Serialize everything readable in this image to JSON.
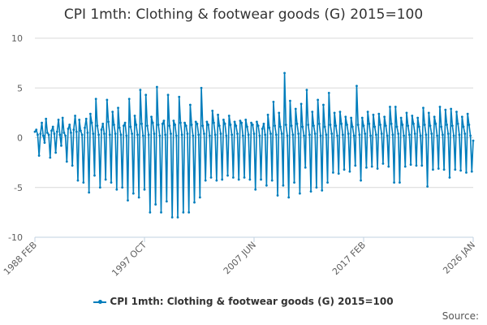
{
  "chart_data": {
    "type": "line",
    "title": "CPI 1mth: Clothing & footwear goods (G) 2015=100",
    "xlabel": "",
    "ylabel": "",
    "x_start": "1988 FEB",
    "x_end": "2026 JAN",
    "x_tick_labels": [
      "1988 FEB",
      "1997 OCT",
      "2007 JUN",
      "2017 FEB",
      "2026 JAN"
    ],
    "ylim": [
      -10,
      10
    ],
    "y_ticks": [
      10,
      5,
      0,
      -5,
      -10
    ],
    "grid": "horizontal",
    "legend_position": "bottom",
    "series": [
      {
        "name": "CPI 1mth: Clothing & footwear goods (G) 2015=100",
        "color": "#007dbc",
        "values": [
          0.6,
          0.8,
          0.3,
          -1.8,
          0.4,
          1.5,
          0.2,
          -0.5,
          1.9,
          0.5,
          0.3,
          -2.0,
          0.7,
          1.1,
          0.4,
          -1.5,
          0.6,
          1.8,
          0.3,
          -0.8,
          2.0,
          0.5,
          0.2,
          -2.4,
          0.9,
          1.3,
          0.5,
          -2.8,
          0.8,
          2.2,
          0.6,
          -4.3,
          1.8,
          0.7,
          0.3,
          -4.5,
          1.0,
          1.9,
          0.5,
          -5.5,
          2.4,
          1.5,
          0.4,
          -3.8,
          3.9,
          1.2,
          0.3,
          -5.0,
          0.8,
          1.4,
          0.4,
          -4.2,
          3.8,
          1.6,
          0.3,
          -4.5,
          2.6,
          1.3,
          0.4,
          -5.2,
          3.0,
          1.0,
          0.3,
          -5.0,
          1.2,
          1.5,
          0.2,
          -6.3,
          3.9,
          1.1,
          0.4,
          -5.6,
          2.2,
          1.3,
          0.3,
          -6.0,
          4.8,
          1.4,
          0.2,
          -5.2,
          4.3,
          1.2,
          0.3,
          -7.5,
          2.1,
          1.5,
          0.4,
          -6.7,
          5.1,
          1.3,
          0.2,
          -7.5,
          1.4,
          1.7,
          0.3,
          -6.4,
          4.3,
          1.2,
          0.4,
          -8.0,
          1.7,
          1.3,
          0.2,
          -8.0,
          4.1,
          1.5,
          0.3,
          -7.5,
          1.5,
          1.2,
          0.4,
          -7.5,
          3.3,
          1.3,
          0.2,
          -6.5,
          1.6,
          1.4,
          0.3,
          -6.0,
          5.0,
          1.2,
          0.4,
          -4.3,
          1.6,
          1.3,
          0.2,
          -4.0,
          2.7,
          1.5,
          0.3,
          -4.3,
          2.3,
          1.2,
          0.4,
          -4.2,
          1.8,
          1.4,
          0.2,
          -3.8,
          2.2,
          1.3,
          0.3,
          -4.0,
          1.6,
          1.2,
          0.4,
          -4.2,
          1.7,
          1.5,
          0.2,
          -4.0,
          1.8,
          1.1,
          0.3,
          -4.2,
          1.5,
          1.3,
          0.4,
          -5.2,
          1.6,
          1.2,
          0.2,
          -4.2,
          0.9,
          1.4,
          0.3,
          -4.8,
          2.3,
          1.0,
          0.4,
          -4.3,
          3.6,
          1.2,
          0.3,
          -5.8,
          2.5,
          1.1,
          0.4,
          -4.8,
          6.5,
          1.3,
          0.2,
          -6.0,
          3.7,
          1.2,
          0.3,
          -4.5,
          2.9,
          1.4,
          0.4,
          -5.6,
          3.4,
          1.1,
          0.2,
          -3.0,
          4.8,
          1.3,
          0.3,
          -5.4,
          2.6,
          1.2,
          0.4,
          -5.0,
          3.8,
          1.4,
          0.2,
          -5.3,
          3.3,
          1.1,
          0.3,
          -4.5,
          4.5,
          1.3,
          0.4,
          -3.5,
          2.5,
          1.2,
          0.2,
          -3.6,
          2.6,
          1.4,
          0.3,
          -3.2,
          2.1,
          1.3,
          0.4,
          -3.4,
          2.0,
          1.1,
          0.2,
          -2.8,
          5.2,
          1.3,
          0.3,
          -4.3,
          2.0,
          1.2,
          0.4,
          -3.0,
          2.6,
          1.4,
          0.2,
          -2.9,
          2.3,
          1.1,
          0.3,
          -3.1,
          2.4,
          1.3,
          0.4,
          -2.6,
          2.1,
          1.2,
          0.2,
          -2.9,
          3.1,
          1.4,
          0.3,
          -4.5,
          3.1,
          1.1,
          0.4,
          -4.5,
          2.0,
          1.3,
          0.2,
          -2.9,
          2.5,
          1.2,
          0.3,
          -2.7,
          2.2,
          1.4,
          0.4,
          -2.8,
          2.0,
          1.1,
          0.2,
          -2.8,
          3.0,
          1.3,
          0.3,
          -4.9,
          2.5,
          1.2,
          0.4,
          -3.2,
          2.1,
          1.4,
          0.2,
          -3.1,
          3.1,
          1.1,
          0.3,
          -3.2,
          2.8,
          1.3,
          0.4,
          -4.0,
          2.9,
          1.2,
          0.2,
          -3.2,
          2.6,
          1.4,
          0.3,
          -3.3,
          2.1,
          1.1,
          0.4,
          -3.5,
          2.4,
          1.3,
          0.2,
          -3.4,
          -0.3
        ]
      }
    ]
  },
  "credits": "Source:"
}
